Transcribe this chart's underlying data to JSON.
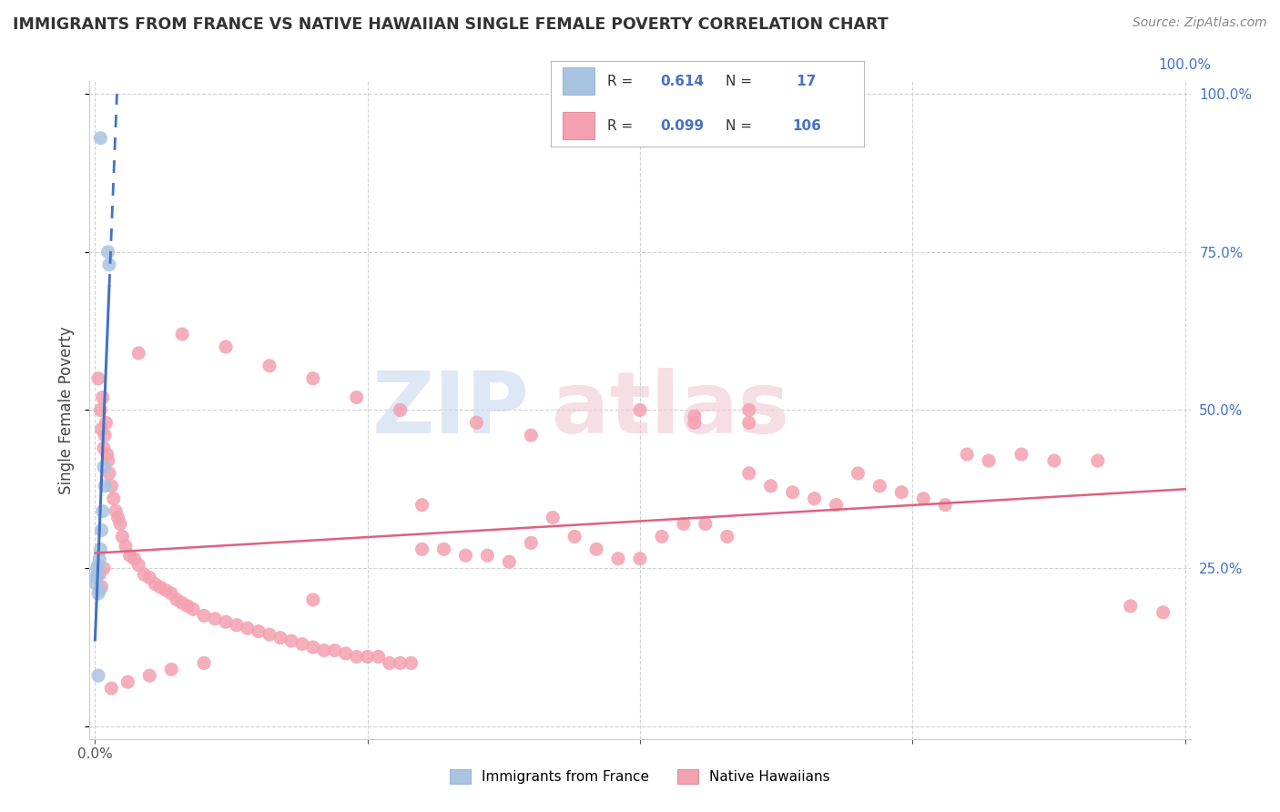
{
  "title": "IMMIGRANTS FROM FRANCE VS NATIVE HAWAIIAN SINGLE FEMALE POVERTY CORRELATION CHART",
  "source": "Source: ZipAtlas.com",
  "ylabel": "Single Female Poverty",
  "legend_label1": "Immigrants from France",
  "legend_label2": "Native Hawaiians",
  "R1": 0.614,
  "N1": 17,
  "R2": 0.099,
  "N2": 106,
  "color_blue": "#a8c4e0",
  "color_pink": "#f4a0b0",
  "color_blue_text": "#4472c4",
  "trendline_blue": "#4472c4",
  "trendline_pink": "#e06080",
  "blue_points_x": [
    0.005,
    0.012,
    0.013,
    0.008,
    0.009,
    0.007,
    0.006,
    0.005,
    0.004,
    0.003,
    0.002,
    0.002,
    0.001,
    0.001,
    0.003,
    0.004,
    0.003
  ],
  "blue_points_y": [
    0.93,
    0.75,
    0.73,
    0.41,
    0.38,
    0.34,
    0.31,
    0.28,
    0.265,
    0.255,
    0.25,
    0.24,
    0.235,
    0.225,
    0.21,
    0.215,
    0.08
  ],
  "pink_points_x": [
    0.003,
    0.005,
    0.006,
    0.007,
    0.008,
    0.009,
    0.01,
    0.011,
    0.012,
    0.013,
    0.015,
    0.017,
    0.019,
    0.021,
    0.023,
    0.025,
    0.028,
    0.032,
    0.036,
    0.04,
    0.045,
    0.05,
    0.055,
    0.06,
    0.065,
    0.07,
    0.075,
    0.08,
    0.085,
    0.09,
    0.1,
    0.11,
    0.12,
    0.13,
    0.14,
    0.15,
    0.16,
    0.17,
    0.18,
    0.19,
    0.2,
    0.21,
    0.22,
    0.23,
    0.24,
    0.25,
    0.26,
    0.27,
    0.28,
    0.29,
    0.3,
    0.32,
    0.34,
    0.36,
    0.38,
    0.4,
    0.42,
    0.44,
    0.46,
    0.48,
    0.5,
    0.52,
    0.54,
    0.56,
    0.58,
    0.6,
    0.62,
    0.64,
    0.66,
    0.68,
    0.7,
    0.72,
    0.74,
    0.76,
    0.78,
    0.8,
    0.82,
    0.85,
    0.88,
    0.92,
    0.95,
    0.98,
    0.04,
    0.08,
    0.12,
    0.16,
    0.2,
    0.24,
    0.28,
    0.35,
    0.4,
    0.5,
    0.55,
    0.6,
    0.3,
    0.2,
    0.1,
    0.07,
    0.05,
    0.03,
    0.015,
    0.008,
    0.004,
    0.006,
    0.55,
    0.6
  ],
  "pink_points_y": [
    0.55,
    0.5,
    0.47,
    0.52,
    0.44,
    0.46,
    0.48,
    0.43,
    0.42,
    0.4,
    0.38,
    0.36,
    0.34,
    0.33,
    0.32,
    0.3,
    0.285,
    0.27,
    0.265,
    0.255,
    0.24,
    0.235,
    0.225,
    0.22,
    0.215,
    0.21,
    0.2,
    0.195,
    0.19,
    0.185,
    0.175,
    0.17,
    0.165,
    0.16,
    0.155,
    0.15,
    0.145,
    0.14,
    0.135,
    0.13,
    0.125,
    0.12,
    0.12,
    0.115,
    0.11,
    0.11,
    0.11,
    0.1,
    0.1,
    0.1,
    0.28,
    0.28,
    0.27,
    0.27,
    0.26,
    0.29,
    0.33,
    0.3,
    0.28,
    0.265,
    0.265,
    0.3,
    0.32,
    0.32,
    0.3,
    0.4,
    0.38,
    0.37,
    0.36,
    0.35,
    0.4,
    0.38,
    0.37,
    0.36,
    0.35,
    0.43,
    0.42,
    0.43,
    0.42,
    0.42,
    0.19,
    0.18,
    0.59,
    0.62,
    0.6,
    0.57,
    0.55,
    0.52,
    0.5,
    0.48,
    0.46,
    0.5,
    0.49,
    0.48,
    0.35,
    0.2,
    0.1,
    0.09,
    0.08,
    0.07,
    0.06,
    0.25,
    0.24,
    0.22,
    0.48,
    0.5
  ]
}
